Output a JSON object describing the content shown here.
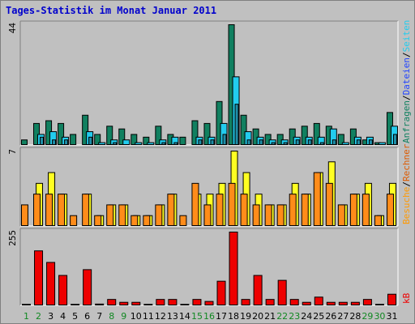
{
  "title": "Tages-Statistik im Monat Januar 2011",
  "colors": {
    "anfragen": "#118060",
    "dateien": "#22ccee",
    "seiten": "#ffff22",
    "besuche": "#ff8800",
    "rechner": "#dd5a00",
    "kb": "#ee0000",
    "weekend_day": "#118822",
    "weekday_day": "#000000",
    "plot_bg": "#c0c0c0"
  },
  "panels": [
    {
      "id": "hits",
      "max_label": "44",
      "max": 44,
      "legend": [
        {
          "text": "Anfragen",
          "color": "#118060"
        },
        {
          "text": "/",
          "color": "#000000"
        },
        {
          "text": "Dateien",
          "color": "#2244ff"
        },
        {
          "text": "/",
          "color": "#000000"
        },
        {
          "text": "Seiten",
          "color": "#22ccee"
        }
      ]
    },
    {
      "id": "visits",
      "max_label": "7",
      "max": 7,
      "legend": [
        {
          "text": "Besuche",
          "color": "#ff9900"
        },
        {
          "text": "/",
          "color": "#000000"
        },
        {
          "text": "Rechner",
          "color": "#dd5a00"
        }
      ]
    },
    {
      "id": "kb",
      "max_label": "255",
      "max": 255,
      "legend": [
        {
          "text": "kB",
          "color": "#ee0000"
        }
      ]
    }
  ],
  "chart_data": {
    "type": "bar",
    "title": "Tages-Statistik im Monat Januar 2011",
    "categories": [
      "1",
      "2",
      "3",
      "4",
      "5",
      "6",
      "7",
      "8",
      "9",
      "10",
      "11",
      "12",
      "13",
      "14",
      "15",
      "16",
      "17",
      "18",
      "19",
      "20",
      "21",
      "22",
      "23",
      "24",
      "25",
      "26",
      "27",
      "28",
      "29",
      "30",
      "31"
    ],
    "weekend_days": [
      "1",
      "2",
      "8",
      "9",
      "15",
      "16",
      "22",
      "23",
      "29",
      "30"
    ],
    "series": [
      {
        "name": "Anfragen",
        "panel": "hits",
        "values": [
          2,
          8,
          9,
          8,
          4,
          11,
          4,
          7,
          6,
          4,
          3,
          7,
          4,
          3,
          9,
          8,
          16,
          44,
          11,
          6,
          4,
          4,
          6,
          7,
          8,
          7,
          4,
          6,
          2,
          1,
          12
        ]
      },
      {
        "name": "Dateien",
        "panel": "hits",
        "values": [
          0,
          4,
          5,
          3,
          0,
          5,
          1,
          2,
          2,
          1,
          1,
          2,
          3,
          0,
          3,
          3,
          8,
          25,
          5,
          3,
          2,
          2,
          3,
          3,
          3,
          6,
          1,
          3,
          3,
          1,
          7
        ]
      },
      {
        "name": "Seiten",
        "panel": "hits",
        "values": [
          0,
          3,
          2,
          2,
          0,
          3,
          0,
          1,
          0,
          0,
          0,
          1,
          1,
          0,
          2,
          2,
          4,
          15,
          2,
          2,
          1,
          1,
          2,
          2,
          1,
          2,
          0,
          2,
          2,
          0,
          4
        ]
      },
      {
        "name": "Besuche",
        "panel": "visits",
        "values": [
          0,
          4,
          5,
          3,
          0,
          3,
          1,
          2,
          2,
          1,
          1,
          2,
          3,
          0,
          3,
          3,
          4,
          7,
          5,
          3,
          2,
          2,
          4,
          3,
          5,
          6,
          2,
          3,
          4,
          1,
          4
        ]
      },
      {
        "name": "Rechner",
        "panel": "visits",
        "values": [
          2,
          3,
          3,
          3,
          1,
          3,
          1,
          2,
          2,
          1,
          1,
          2,
          3,
          1,
          4,
          2,
          3,
          4,
          3,
          2,
          2,
          2,
          3,
          3,
          5,
          4,
          2,
          3,
          3,
          1,
          3
        ]
      },
      {
        "name": "kB",
        "panel": "kb",
        "values": [
          5,
          190,
          150,
          105,
          5,
          125,
          6,
          22,
          12,
          12,
          5,
          22,
          22,
          5,
          22,
          15,
          85,
          255,
          22,
          105,
          22,
          88,
          22,
          12,
          30,
          12,
          12,
          12,
          22,
          5,
          40
        ]
      }
    ]
  }
}
